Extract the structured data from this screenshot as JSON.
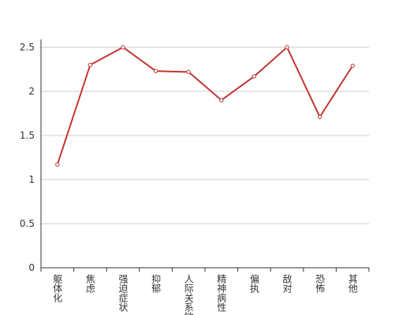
{
  "chart_data": {
    "type": "line",
    "categories": [
      "躯体化",
      "焦虑",
      "强迫症状",
      "抑郁",
      "人际关系敏感",
      "精神病性",
      "偏执",
      "敌对",
      "恐怖",
      "其他"
    ],
    "values": [
      1.17,
      2.3,
      2.5,
      2.23,
      2.22,
      1.9,
      2.17,
      2.5,
      1.71,
      2.29
    ],
    "color": "#c23531",
    "ylim": [
      0,
      2.5
    ],
    "yticks": [
      0,
      0.5,
      1,
      1.5,
      2,
      2.5
    ],
    "grid": true
  }
}
